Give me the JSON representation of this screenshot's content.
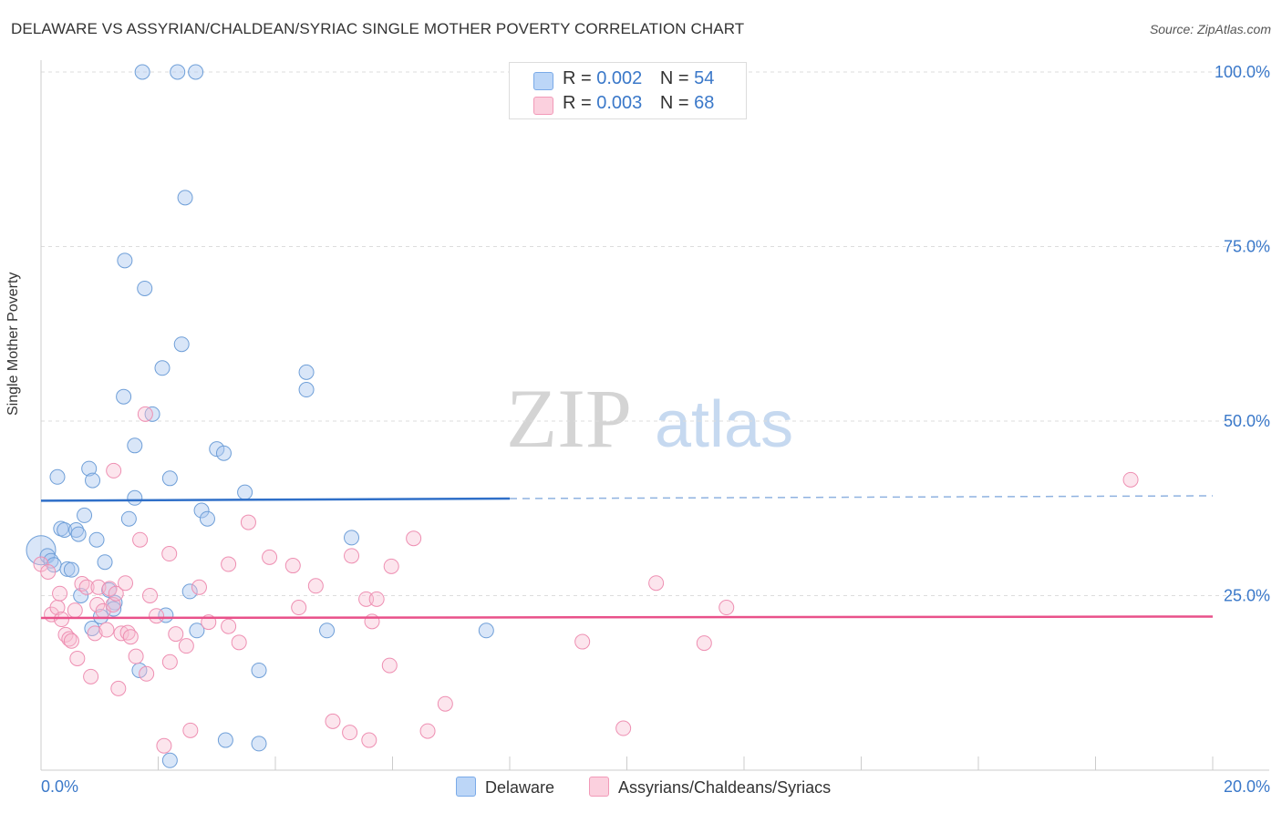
{
  "title": "DELAWARE VS ASSYRIAN/CHALDEAN/SYRIAC SINGLE MOTHER POVERTY CORRELATION CHART",
  "source": "Source: ZipAtlas.com",
  "watermark": {
    "zip": "ZIP",
    "atlas": "atlas"
  },
  "legend": {
    "r_label": "R =",
    "n_label": "N =",
    "series": [
      {
        "name": "Delaware",
        "r": "0.002",
        "n": "54"
      },
      {
        "name": "Assyrians/Chaldeans/Syriacs",
        "r": "0.003",
        "n": "68"
      }
    ]
  },
  "chart_data": {
    "type": "scatter",
    "title": "DELAWARE VS ASSYRIAN/CHALDEAN/SYRIAC SINGLE MOTHER POVERTY CORRELATION CHART",
    "xlabel": "",
    "ylabel": "Single Mother Poverty",
    "xlim": [
      0,
      20
    ],
    "ylim": [
      0,
      100
    ],
    "x_tick_labels": [
      "0.0%",
      "20.0%"
    ],
    "y_tick_labels": [
      "100.0%",
      "75.0%",
      "50.0%",
      "25.0%"
    ],
    "y_ticks": [
      100,
      75,
      50,
      25
    ],
    "grid": true,
    "colors": {
      "Delaware": "#7aaae8",
      "Assyrians/Chaldeans/Syriacs": "#f29ab8",
      "Delaware_line": "#2f6fc8",
      "Assyrians_line": "#e9518a",
      "axis_text": "#3a78c9"
    },
    "series": [
      {
        "name": "Delaware",
        "points": [
          [
            1.73,
            100
          ],
          [
            2.33,
            100
          ],
          [
            2.64,
            100
          ],
          [
            2.46,
            82
          ],
          [
            1.43,
            73
          ],
          [
            1.77,
            69
          ],
          [
            2.4,
            61
          ],
          [
            2.07,
            57.6
          ],
          [
            4.53,
            57
          ],
          [
            4.53,
            54.5
          ],
          [
            1.41,
            53.5
          ],
          [
            1.9,
            51
          ],
          [
            1.6,
            46.5
          ],
          [
            3.0,
            46
          ],
          [
            3.12,
            45.4
          ],
          [
            0.82,
            43.2
          ],
          [
            0.28,
            42
          ],
          [
            0.88,
            41.5
          ],
          [
            2.2,
            41.8
          ],
          [
            3.48,
            39.8
          ],
          [
            1.6,
            39
          ],
          [
            2.74,
            37.2
          ],
          [
            0.74,
            36.5
          ],
          [
            1.5,
            36
          ],
          [
            2.84,
            36
          ],
          [
            0.34,
            34.6
          ],
          [
            0.4,
            34.4
          ],
          [
            0.6,
            34.4
          ],
          [
            0.64,
            33.8
          ],
          [
            5.3,
            33.3
          ],
          [
            0.95,
            33
          ],
          [
            0.0,
            31.5
          ],
          [
            0.11,
            30.7
          ],
          [
            0.17,
            30
          ],
          [
            0.22,
            29.4
          ],
          [
            1.09,
            29.8
          ],
          [
            0.45,
            28.8
          ],
          [
            0.52,
            28.7
          ],
          [
            2.54,
            25.6
          ],
          [
            0.68,
            25
          ],
          [
            1.16,
            25.8
          ],
          [
            1.26,
            24
          ],
          [
            1.24,
            23.1
          ],
          [
            2.13,
            22.2
          ],
          [
            1.02,
            22
          ],
          [
            0.87,
            20.3
          ],
          [
            2.66,
            20
          ],
          [
            4.88,
            20
          ],
          [
            7.6,
            20
          ],
          [
            1.68,
            14.3
          ],
          [
            3.72,
            14.3
          ],
          [
            3.15,
            4.3
          ],
          [
            3.72,
            3.8
          ],
          [
            2.2,
            1.4
          ]
        ],
        "sizes": {
          "0.0,31.5": "large"
        }
      },
      {
        "name": "Assyrians/Chaldeans/Syriacs",
        "points": [
          [
            0.0,
            29.5
          ],
          [
            0.12,
            28.4
          ],
          [
            0.18,
            22.3
          ],
          [
            0.28,
            23.3
          ],
          [
            0.32,
            25.3
          ],
          [
            0.35,
            21.6
          ],
          [
            0.42,
            19.4
          ],
          [
            0.48,
            18.8
          ],
          [
            0.52,
            18.5
          ],
          [
            0.58,
            22.9
          ],
          [
            0.62,
            16
          ],
          [
            0.7,
            26.7
          ],
          [
            0.78,
            26.2
          ],
          [
            0.85,
            13.4
          ],
          [
            0.92,
            19.6
          ],
          [
            0.96,
            23.7
          ],
          [
            0.98,
            26.2
          ],
          [
            1.06,
            22.8
          ],
          [
            1.12,
            20.1
          ],
          [
            1.17,
            26
          ],
          [
            1.23,
            23.7
          ],
          [
            1.28,
            25.3
          ],
          [
            1.32,
            11.7
          ],
          [
            1.37,
            19.6
          ],
          [
            1.44,
            26.8
          ],
          [
            1.48,
            19.7
          ],
          [
            1.53,
            19.1
          ],
          [
            1.62,
            16.3
          ],
          [
            1.69,
            33
          ],
          [
            1.78,
            51
          ],
          [
            1.8,
            13.8
          ],
          [
            1.86,
            25
          ],
          [
            1.97,
            22.1
          ],
          [
            2.1,
            3.5
          ],
          [
            2.19,
            31
          ],
          [
            2.2,
            15.5
          ],
          [
            2.3,
            19.5
          ],
          [
            2.48,
            17.8
          ],
          [
            2.55,
            5.7
          ],
          [
            2.7,
            26.2
          ],
          [
            2.86,
            21.2
          ],
          [
            3.2,
            29.5
          ],
          [
            3.2,
            20.6
          ],
          [
            3.38,
            18.3
          ],
          [
            3.54,
            35.5
          ],
          [
            3.9,
            30.5
          ],
          [
            4.3,
            29.3
          ],
          [
            4.4,
            23.3
          ],
          [
            4.69,
            26.4
          ],
          [
            4.98,
            7
          ],
          [
            5.27,
            5.4
          ],
          [
            5.3,
            30.7
          ],
          [
            5.55,
            24.5
          ],
          [
            5.6,
            4.3
          ],
          [
            5.65,
            21.3
          ],
          [
            5.73,
            24.5
          ],
          [
            5.95,
            15
          ],
          [
            5.98,
            29.2
          ],
          [
            6.36,
            33.2
          ],
          [
            6.6,
            5.6
          ],
          [
            6.9,
            9.5
          ],
          [
            9.24,
            18.4
          ],
          [
            9.94,
            6
          ],
          [
            10.5,
            26.8
          ],
          [
            11.32,
            18.2
          ],
          [
            11.7,
            23.3
          ],
          [
            18.6,
            41.6
          ],
          [
            1.24,
            42.9
          ]
        ]
      }
    ],
    "trend_lines": [
      {
        "series": "Delaware",
        "from": [
          0,
          38.6
        ],
        "to_solid": [
          8.0,
          38.9
        ],
        "to_dashed": [
          20,
          39.3
        ]
      },
      {
        "series": "Assyrians/Chaldeans/Syriacs",
        "from": [
          0,
          21.8
        ],
        "to": [
          20,
          22.0
        ]
      }
    ]
  }
}
